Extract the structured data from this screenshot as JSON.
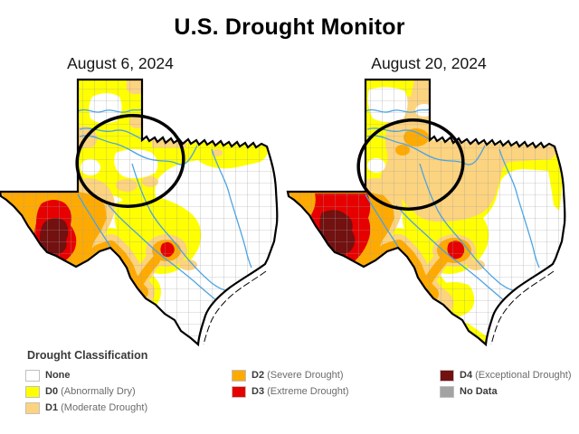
{
  "title": "U.S. Drought Monitor",
  "maps": [
    {
      "date": "August 6, 2024"
    },
    {
      "date": "August 20, 2024"
    }
  ],
  "legend": {
    "heading": "Drought Classification",
    "columns": [
      [
        {
          "code": "None",
          "desc": "",
          "color": "#FFFFFF"
        },
        {
          "code": "D0",
          "desc": "(Abnormally Dry)",
          "color": "#FFFF00"
        },
        {
          "code": "D1",
          "desc": "(Moderate Drought)",
          "color": "#FCD37F"
        }
      ],
      [
        {
          "code": "D2",
          "desc": "(Severe Drought)",
          "color": "#FFAA00"
        },
        {
          "code": "D3",
          "desc": "(Extreme Drought)",
          "color": "#E60000"
        }
      ],
      [
        {
          "code": "D4",
          "desc": "(Exceptional Drought)",
          "color": "#731010"
        },
        {
          "code": "No Data",
          "desc": "",
          "color": "#A3A3A3"
        }
      ]
    ]
  },
  "map_colors": {
    "d0": "#FFFF00",
    "d1": "#FCD37F",
    "d2": "#FFAA00",
    "d3": "#E60000",
    "d4": "#731010",
    "nodrought": "#FFFFFF",
    "river": "#4BA3E3",
    "annotation": "#000000",
    "border": "#000000",
    "county": "#A0A0A0"
  }
}
